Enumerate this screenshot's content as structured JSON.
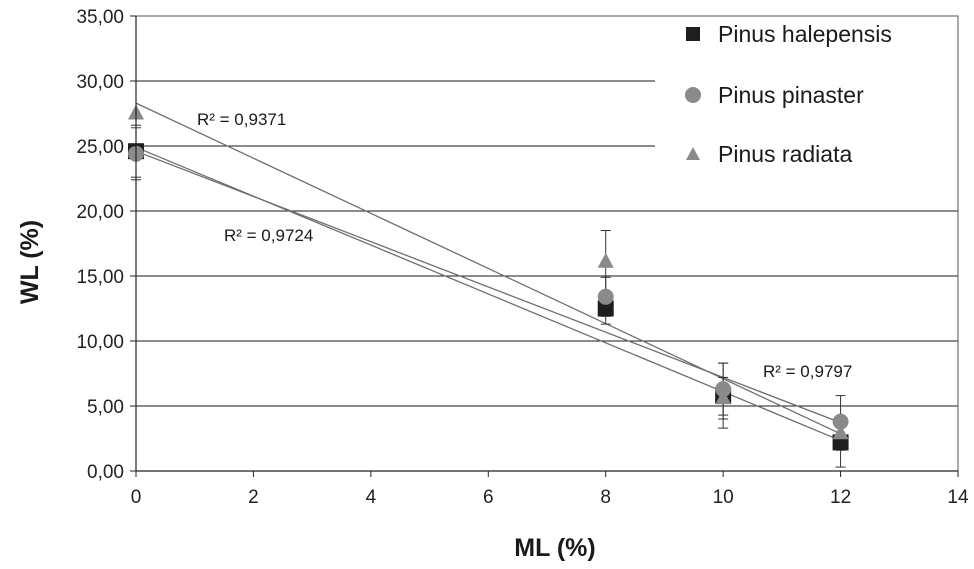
{
  "chart_data": {
    "type": "scatter",
    "xlabel": "ML (%)",
    "ylabel": "WL (%)",
    "xlim": [
      0,
      14
    ],
    "ylim": [
      0,
      35
    ],
    "x_ticks": [
      0,
      2,
      4,
      6,
      8,
      10,
      12,
      14
    ],
    "y_ticks": [
      0,
      5,
      10,
      15,
      20,
      25,
      30,
      35
    ],
    "y_tick_labels": [
      "0,00",
      "5,00",
      "10,00",
      "15,00",
      "20,00",
      "25,00",
      "30,00",
      "35,00"
    ],
    "grid": "horizontal",
    "legend_position": "top-right",
    "series": [
      {
        "name": "Pinus halepensis",
        "marker": "square",
        "color": "#1e1e1e",
        "x": [
          0,
          8,
          10,
          12
        ],
        "y": [
          24.6,
          12.5,
          5.8,
          2.2
        ],
        "err": [
          2.0,
          1.2,
          2.5,
          1.9
        ],
        "trend": [
          24.9,
          -1.88
        ]
      },
      {
        "name": "Pinus pinaster",
        "marker": "circle",
        "color": "#8a8a8a",
        "x": [
          0,
          8,
          10,
          12
        ],
        "y": [
          24.4,
          13.4,
          6.3,
          3.8
        ],
        "err": [
          2.0,
          1.5,
          2.0,
          2.0
        ],
        "trend": [
          24.6,
          -1.74
        ]
      },
      {
        "name": "Pinus radiata",
        "marker": "triangle",
        "color": "#8a8a8a",
        "x": [
          0,
          8,
          10,
          12
        ],
        "y": [
          27.5,
          16.1,
          5.6,
          2.9
        ],
        "err": [
          0,
          2.4,
          1.6,
          1.3
        ],
        "trend": [
          28.3,
          -2.12
        ]
      }
    ],
    "annotations": [
      "R² = 0,9371",
      "R² = 0,9724",
      "R² = 0,9797"
    ]
  }
}
